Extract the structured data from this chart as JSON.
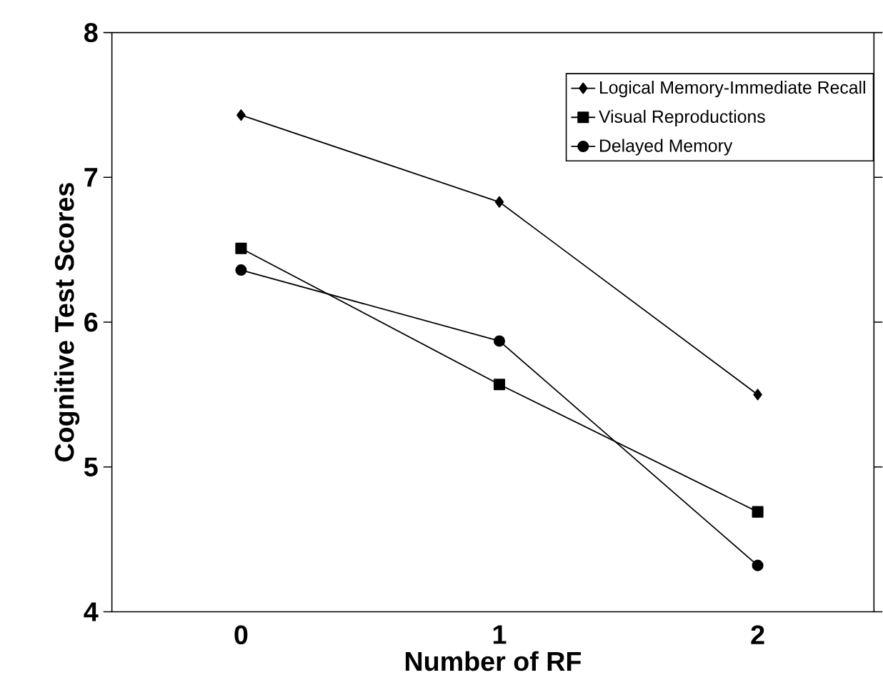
{
  "chart_data": {
    "type": "line",
    "xlabel": "Number of RF",
    "ylabel": "Cognitive Test Scores",
    "categories": [
      "0",
      "1",
      "2"
    ],
    "series": [
      {
        "name": "Logical Memory-Immediate Recall",
        "color": "#000000",
        "marker": "diamond",
        "values": [
          7.43,
          6.83,
          5.5
        ]
      },
      {
        "name": "Visual Reproductions",
        "color": "#000000",
        "marker": "square",
        "values": [
          6.51,
          5.57,
          4.69
        ]
      },
      {
        "name": "Delayed Memory",
        "color": "#000000",
        "marker": "circle",
        "values": [
          6.36,
          5.87,
          4.32
        ]
      }
    ],
    "ylim": [
      4,
      8
    ],
    "yticks": [
      4,
      5,
      6,
      7,
      8
    ],
    "legend": "top right",
    "line_style": "solid"
  }
}
